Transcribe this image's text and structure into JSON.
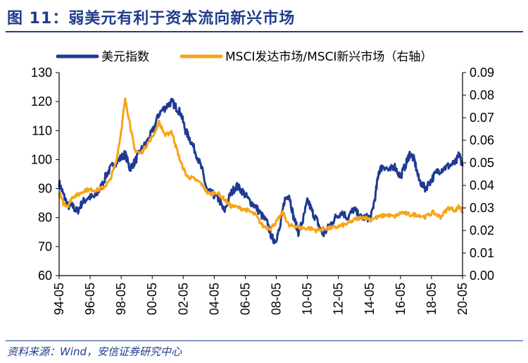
{
  "header": {
    "title": "图 11：弱美元有利于资本流向新兴市场"
  },
  "footer": {
    "source": "资料来源：Wind，安信证券研究中心"
  },
  "chart_data": {
    "type": "line",
    "legend_position": "top",
    "grid": false,
    "y_left": {
      "min": 60,
      "max": 130,
      "ticks": [
        "130",
        "120",
        "110",
        "100",
        "90",
        "80",
        "70",
        "60"
      ]
    },
    "y_right": {
      "min": 0.0,
      "max": 0.09,
      "ticks": [
        "0.09",
        "0.08",
        "0.07",
        "0.06",
        "0.05",
        "0.04",
        "0.03",
        "0.02",
        "0.01",
        "0.00"
      ]
    },
    "x": {
      "min": 1994.33,
      "max": 2020.42,
      "ticks": [
        "94-05",
        "96-05",
        "98-05",
        "00-05",
        "02-05",
        "04-05",
        "06-05",
        "08-05",
        "10-05",
        "12-05",
        "14-05",
        "16-05",
        "18-05",
        "20-05"
      ]
    },
    "series": [
      {
        "name": "美元指数",
        "axis": "left",
        "color": "#1f3a93",
        "points": [
          [
            1994.33,
            92
          ],
          [
            1994.6,
            88
          ],
          [
            1994.9,
            84
          ],
          [
            1995.2,
            84
          ],
          [
            1995.5,
            82
          ],
          [
            1995.8,
            85
          ],
          [
            1996.2,
            87
          ],
          [
            1996.6,
            87
          ],
          [
            1997.0,
            90
          ],
          [
            1997.4,
            95
          ],
          [
            1997.8,
            98
          ],
          [
            1998.2,
            100
          ],
          [
            1998.6,
            102
          ],
          [
            1998.9,
            97
          ],
          [
            1999.2,
            99
          ],
          [
            1999.6,
            103
          ],
          [
            2000.0,
            106
          ],
          [
            2000.4,
            110
          ],
          [
            2000.8,
            116
          ],
          [
            2001.2,
            118
          ],
          [
            2001.6,
            120
          ],
          [
            2001.9,
            118
          ],
          [
            2002.2,
            116
          ],
          [
            2002.5,
            110
          ],
          [
            2002.8,
            107
          ],
          [
            2003.2,
            102
          ],
          [
            2003.6,
            96
          ],
          [
            2003.9,
            89
          ],
          [
            2004.3,
            88
          ],
          [
            2004.7,
            86
          ],
          [
            2005.0,
            82
          ],
          [
            2005.4,
            88
          ],
          [
            2005.8,
            91
          ],
          [
            2006.2,
            89
          ],
          [
            2006.6,
            86
          ],
          [
            2007.0,
            84
          ],
          [
            2007.4,
            81
          ],
          [
            2007.8,
            78
          ],
          [
            2008.1,
            73
          ],
          [
            2008.3,
            72
          ],
          [
            2008.6,
            76
          ],
          [
            2008.9,
            86
          ],
          [
            2009.2,
            88
          ],
          [
            2009.5,
            80
          ],
          [
            2009.8,
            75
          ],
          [
            2010.1,
            79
          ],
          [
            2010.4,
            86
          ],
          [
            2010.7,
            82
          ],
          [
            2011.0,
            79
          ],
          [
            2011.4,
            74
          ],
          [
            2011.8,
            77
          ],
          [
            2012.2,
            80
          ],
          [
            2012.6,
            82
          ],
          [
            2013.0,
            80
          ],
          [
            2013.4,
            83
          ],
          [
            2013.8,
            80
          ],
          [
            2014.2,
            80
          ],
          [
            2014.5,
            80
          ],
          [
            2014.8,
            88
          ],
          [
            2015.0,
            96
          ],
          [
            2015.3,
            98
          ],
          [
            2015.7,
            96
          ],
          [
            2016.0,
            98
          ],
          [
            2016.4,
            94
          ],
          [
            2016.8,
            99
          ],
          [
            2017.0,
            102
          ],
          [
            2017.3,
            100
          ],
          [
            2017.6,
            93
          ],
          [
            2018.0,
            90
          ],
          [
            2018.4,
            93
          ],
          [
            2018.8,
            96
          ],
          [
            2019.2,
            97
          ],
          [
            2019.6,
            98
          ],
          [
            2020.0,
            99
          ],
          [
            2020.2,
            102
          ],
          [
            2020.42,
            98
          ]
        ]
      },
      {
        "name": "MSCI发达市场/MSCI新兴市场（右轴）",
        "axis": "right",
        "color": "#f7a418",
        "points": [
          [
            1994.33,
            0.037
          ],
          [
            1994.6,
            0.032
          ],
          [
            1994.9,
            0.031
          ],
          [
            1995.2,
            0.035
          ],
          [
            1995.6,
            0.036
          ],
          [
            1996.0,
            0.038
          ],
          [
            1996.4,
            0.038
          ],
          [
            1996.8,
            0.038
          ],
          [
            1997.2,
            0.039
          ],
          [
            1997.6,
            0.042
          ],
          [
            1998.0,
            0.05
          ],
          [
            1998.3,
            0.062
          ],
          [
            1998.6,
            0.078
          ],
          [
            1998.9,
            0.068
          ],
          [
            1999.2,
            0.056
          ],
          [
            1999.6,
            0.054
          ],
          [
            2000.0,
            0.058
          ],
          [
            2000.4,
            0.062
          ],
          [
            2000.8,
            0.068
          ],
          [
            2001.2,
            0.062
          ],
          [
            2001.6,
            0.064
          ],
          [
            2001.9,
            0.057
          ],
          [
            2002.2,
            0.05
          ],
          [
            2002.6,
            0.044
          ],
          [
            2003.0,
            0.043
          ],
          [
            2003.5,
            0.041
          ],
          [
            2004.0,
            0.036
          ],
          [
            2004.5,
            0.037
          ],
          [
            2005.0,
            0.034
          ],
          [
            2005.4,
            0.031
          ],
          [
            2006.0,
            0.03
          ],
          [
            2006.5,
            0.029
          ],
          [
            2007.0,
            0.027
          ],
          [
            2007.5,
            0.022
          ],
          [
            2008.0,
            0.021
          ],
          [
            2008.4,
            0.024
          ],
          [
            2008.8,
            0.028
          ],
          [
            2009.2,
            0.022
          ],
          [
            2009.6,
            0.022
          ],
          [
            2010.0,
            0.021
          ],
          [
            2010.5,
            0.021
          ],
          [
            2011.0,
            0.02
          ],
          [
            2011.5,
            0.021
          ],
          [
            2012.0,
            0.021
          ],
          [
            2012.5,
            0.022
          ],
          [
            2013.0,
            0.023
          ],
          [
            2013.5,
            0.025
          ],
          [
            2014.0,
            0.026
          ],
          [
            2014.5,
            0.025
          ],
          [
            2015.0,
            0.026
          ],
          [
            2015.5,
            0.027
          ],
          [
            2016.0,
            0.026
          ],
          [
            2016.5,
            0.028
          ],
          [
            2017.0,
            0.027
          ],
          [
            2017.5,
            0.027
          ],
          [
            2018.0,
            0.026
          ],
          [
            2018.5,
            0.028
          ],
          [
            2019.0,
            0.026
          ],
          [
            2019.5,
            0.03
          ],
          [
            2020.0,
            0.029
          ],
          [
            2020.2,
            0.031
          ],
          [
            2020.42,
            0.028
          ]
        ]
      }
    ]
  }
}
